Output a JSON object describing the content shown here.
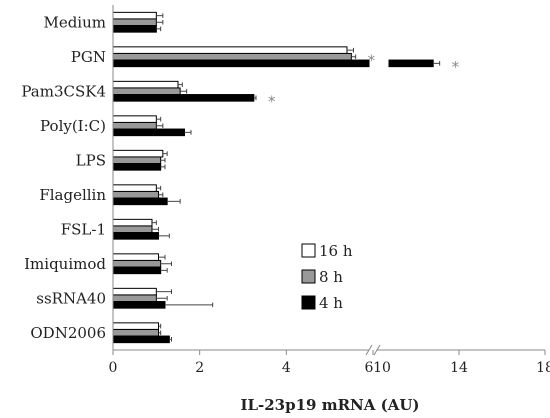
{
  "chart_data": {
    "type": "bar",
    "orientation": "horizontal",
    "title": "",
    "xlabel": "IL-23p19 mRNA (AU)",
    "ylabel": "",
    "axis_break": true,
    "x_segments": [
      {
        "range": [
          0,
          6
        ],
        "ticks": [
          0,
          2,
          4,
          6
        ],
        "tick_labels": [
          "0",
          "2",
          "4",
          "6"
        ]
      },
      {
        "range": [
          10,
          18
        ],
        "ticks": [
          10,
          14,
          18
        ],
        "tick_labels": [
          "10",
          "14",
          "18"
        ]
      }
    ],
    "categories": [
      "Medium",
      "PGN",
      "Pam3CSK4",
      "Poly(I:C)",
      "LPS",
      "Flagellin",
      "FSL-1",
      "Imiquimod",
      "ssRNA40",
      "ODN2006"
    ],
    "series": [
      {
        "name": "16 h",
        "color": "#ffffff",
        "values": [
          1.0,
          5.4,
          1.5,
          1.0,
          1.15,
          1.0,
          0.9,
          1.05,
          1.0,
          1.05
        ],
        "errors": [
          0.15,
          0.15,
          0.1,
          0.1,
          0.1,
          0.1,
          0.1,
          0.15,
          0.35,
          0.05
        ]
      },
      {
        "name": "8 h",
        "color": "#999999",
        "values": [
          1.0,
          5.5,
          1.55,
          1.0,
          1.1,
          1.05,
          0.9,
          1.1,
          1.0,
          1.05
        ],
        "errors": [
          0.15,
          0.1,
          0.15,
          0.15,
          0.1,
          0.1,
          0.15,
          0.25,
          0.25,
          0.05
        ]
      },
      {
        "name": "4 h",
        "color": "#000000",
        "values": [
          1.0,
          12.8,
          3.25,
          1.65,
          1.1,
          1.25,
          1.05,
          1.1,
          1.2,
          1.3
        ],
        "errors": [
          0.1,
          0.3,
          0.05,
          0.15,
          0.1,
          0.3,
          0.25,
          0.15,
          1.1,
          0.05
        ]
      }
    ],
    "annotations": [
      {
        "category": "PGN",
        "series": "8 h",
        "text": "*"
      },
      {
        "category": "PGN",
        "series": "4 h",
        "text": "*"
      },
      {
        "category": "Pam3CSK4",
        "series": "4 h",
        "text": "*"
      }
    ],
    "legend": {
      "position": "lower-right",
      "order": [
        "16 h",
        "8 h",
        "4 h"
      ]
    }
  }
}
